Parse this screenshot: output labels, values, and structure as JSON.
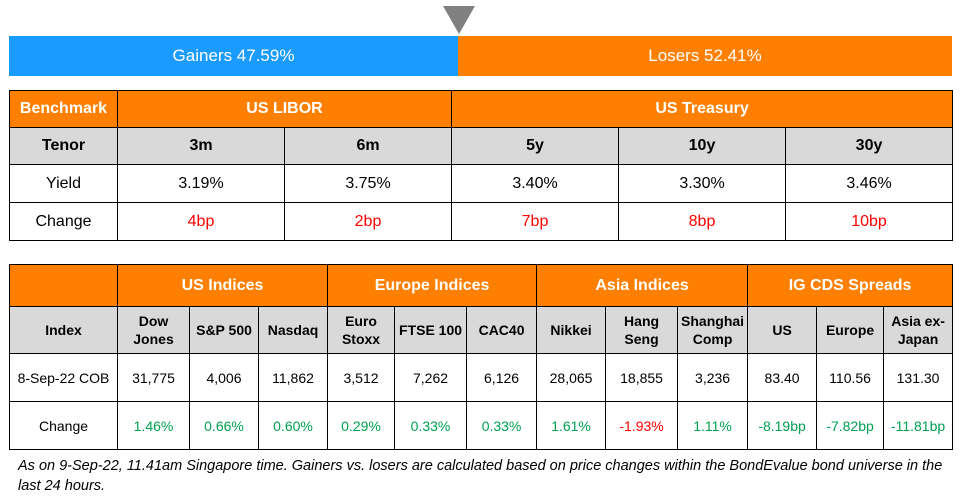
{
  "gainers_losers": {
    "gainers_label": "Gainers 47.59%",
    "losers_label": "Losers 52.41%",
    "gainers_pct": 47.59,
    "losers_pct": 52.41,
    "colors": {
      "gainers": "#1a9bff",
      "losers": "#ff8000",
      "marker": "#808080"
    }
  },
  "rates_table": {
    "benchmark_label": "Benchmark",
    "groups": [
      "US LIBOR",
      "US Treasury"
    ],
    "tenor_label": "Tenor",
    "tenors": [
      "3m",
      "6m",
      "5y",
      "10y",
      "30y"
    ],
    "yield_label": "Yield",
    "yields": [
      "3.19%",
      "3.75%",
      "3.40%",
      "3.30%",
      "3.46%"
    ],
    "change_label": "Change",
    "changes": [
      "4bp",
      "2bp",
      "7bp",
      "8bp",
      "10bp"
    ]
  },
  "indices_table": {
    "groups": [
      "US Indices",
      "Europe Indices",
      "Asia Indices",
      "IG CDS Spreads"
    ],
    "index_label": "Index",
    "indices": [
      [
        "Dow",
        "Jones"
      ],
      [
        "S&P 500"
      ],
      [
        "Nasdaq"
      ],
      [
        "Euro",
        "Stoxx"
      ],
      [
        "FTSE 100"
      ],
      [
        "CAC40"
      ],
      [
        "Nikkei"
      ],
      [
        "Hang",
        "Seng"
      ],
      [
        "Shanghai",
        "Comp"
      ],
      [
        "US"
      ],
      [
        "Europe"
      ],
      [
        "Asia ex-",
        "Japan"
      ]
    ],
    "cob_label": "8-Sep-22 COB",
    "values": [
      "31,775",
      "4,006",
      "11,862",
      "3,512",
      "7,262",
      "6,126",
      "28,065",
      "18,855",
      "3,236",
      "83.40",
      "110.56",
      "131.30"
    ],
    "change_label": "Change",
    "changes": [
      "1.46%",
      "0.66%",
      "0.60%",
      "0.29%",
      "0.33%",
      "0.33%",
      "1.61%",
      "-1.93%",
      "1.11%",
      "-8.19bp",
      "-7.82bp",
      "-11.81bp"
    ],
    "change_colors": [
      "green",
      "green",
      "green",
      "green",
      "green",
      "green",
      "green",
      "red",
      "green",
      "green",
      "green",
      "green"
    ]
  },
  "footnote": "As on 9-Sep-22, 11.41am Singapore time. Gainers vs. losers are calculated based on price changes within the BondEvalue bond universe in the last 24 hours."
}
